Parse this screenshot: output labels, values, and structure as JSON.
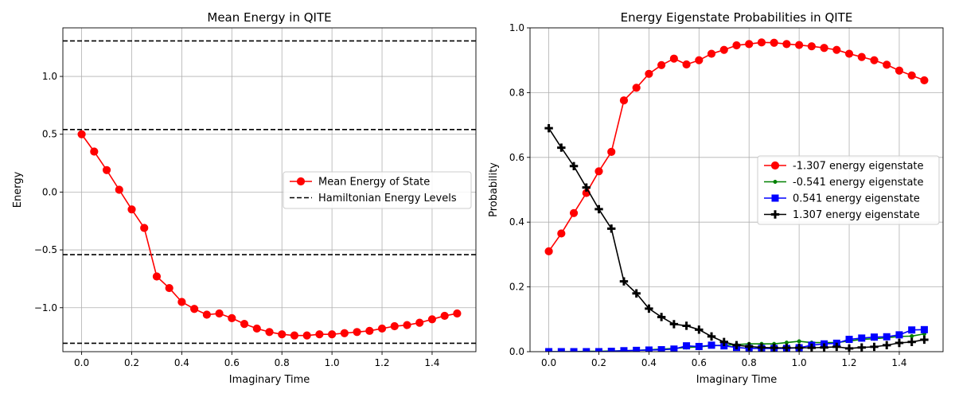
{
  "chart_data": [
    {
      "type": "line",
      "title": "Mean Energy in QITE",
      "xlabel": "Imaginary Time",
      "ylabel": "Energy",
      "xlim": [
        -0.075,
        1.575
      ],
      "ylim": [
        -1.38,
        1.42
      ],
      "xticks": [
        0.0,
        0.2,
        0.4,
        0.6,
        0.8,
        1.0,
        1.2,
        1.4
      ],
      "xtick_labels": [
        "0.0",
        "0.2",
        "0.4",
        "0.6",
        "0.8",
        "1.0",
        "1.2",
        "1.4"
      ],
      "yticks": [
        -1.0,
        -0.5,
        0.0,
        0.5,
        1.0
      ],
      "ytick_labels": [
        "−1.0",
        "−0.5",
        "0.0",
        "0.5",
        "1.0"
      ],
      "grid": true,
      "legend_position": "center-right",
      "series": [
        {
          "name": "Mean Energy of State",
          "color": "#ff0000",
          "marker": "circle",
          "x": [
            0.0,
            0.05,
            0.1,
            0.15,
            0.2,
            0.25,
            0.3,
            0.35,
            0.4,
            0.45,
            0.5,
            0.55,
            0.6,
            0.65,
            0.7,
            0.75,
            0.8,
            0.85,
            0.9,
            0.95,
            1.0,
            1.05,
            1.1,
            1.15,
            1.2,
            1.25,
            1.3,
            1.35,
            1.4,
            1.45,
            1.5
          ],
          "y": [
            0.5,
            0.35,
            0.19,
            0.02,
            -0.15,
            -0.31,
            -0.73,
            -0.83,
            -0.95,
            -1.01,
            -1.06,
            -1.05,
            -1.09,
            -1.14,
            -1.18,
            -1.21,
            -1.23,
            -1.24,
            -1.24,
            -1.23,
            -1.23,
            -1.22,
            -1.21,
            -1.2,
            -1.18,
            -1.16,
            -1.15,
            -1.13,
            -1.1,
            -1.07,
            -1.05
          ]
        }
      ],
      "hlines": {
        "name": "Hamiltonian Energy Levels",
        "color": "#000000",
        "style": "dashed",
        "values": [
          -1.307,
          -0.541,
          0.541,
          1.307
        ]
      }
    },
    {
      "type": "line",
      "title": "Energy Eigenstate Probabilities in QITE",
      "xlabel": "Imaginary Time",
      "ylabel": "Probability",
      "xlim": [
        -0.075,
        1.575
      ],
      "ylim": [
        0.0,
        1.0
      ],
      "xticks": [
        0.0,
        0.2,
        0.4,
        0.6,
        0.8,
        1.0,
        1.2,
        1.4
      ],
      "xtick_labels": [
        "0.0",
        "0.2",
        "0.4",
        "0.6",
        "0.8",
        "1.0",
        "1.2",
        "1.4"
      ],
      "yticks": [
        0.0,
        0.2,
        0.4,
        0.6,
        0.8,
        1.0
      ],
      "ytick_labels": [
        "0.0",
        "0.2",
        "0.4",
        "0.6",
        "0.8",
        "1.0"
      ],
      "grid": true,
      "legend_position": "center-right",
      "series": [
        {
          "name": "-1.307 energy eigenstate",
          "color": "#ff0000",
          "marker": "circle",
          "x": [
            0.0,
            0.05,
            0.1,
            0.15,
            0.2,
            0.25,
            0.3,
            0.35,
            0.4,
            0.45,
            0.5,
            0.55,
            0.6,
            0.65,
            0.7,
            0.75,
            0.8,
            0.85,
            0.9,
            0.95,
            1.0,
            1.05,
            1.1,
            1.15,
            1.2,
            1.25,
            1.3,
            1.35,
            1.4,
            1.45,
            1.5
          ],
          "y": [
            0.31,
            0.365,
            0.428,
            0.49,
            0.557,
            0.617,
            0.776,
            0.815,
            0.858,
            0.885,
            0.905,
            0.887,
            0.9,
            0.92,
            0.932,
            0.946,
            0.95,
            0.955,
            0.954,
            0.95,
            0.947,
            0.943,
            0.938,
            0.932,
            0.92,
            0.91,
            0.9,
            0.886,
            0.868,
            0.853,
            0.838
          ]
        },
        {
          "name": "-0.541 energy eigenstate",
          "color": "#008000",
          "marker": "small-dot",
          "x": [
            0.0,
            0.05,
            0.1,
            0.15,
            0.2,
            0.25,
            0.3,
            0.35,
            0.4,
            0.45,
            0.5,
            0.55,
            0.6,
            0.65,
            0.7,
            0.75,
            0.8,
            0.85,
            0.9,
            0.95,
            1.0,
            1.05,
            1.1,
            1.15,
            1.2,
            1.25,
            1.3,
            1.35,
            1.4,
            1.45,
            1.5
          ],
          "y": [
            0.0,
            0.0,
            0.0,
            0.001,
            0.001,
            0.002,
            0.003,
            0.004,
            0.006,
            0.008,
            0.01,
            0.013,
            0.015,
            0.018,
            0.02,
            0.022,
            0.024,
            0.024,
            0.024,
            0.028,
            0.032,
            0.028,
            0.028,
            0.028,
            0.033,
            0.038,
            0.04,
            0.043,
            0.047,
            0.048,
            0.055
          ]
        },
        {
          "name": "0.541 energy eigenstate",
          "color": "#0000ff",
          "marker": "square",
          "x": [
            0.0,
            0.05,
            0.1,
            0.15,
            0.2,
            0.25,
            0.3,
            0.35,
            0.4,
            0.45,
            0.5,
            0.55,
            0.6,
            0.65,
            0.7,
            0.75,
            0.8,
            0.85,
            0.9,
            0.95,
            1.0,
            1.05,
            1.1,
            1.15,
            1.2,
            1.25,
            1.3,
            1.35,
            1.4,
            1.45,
            1.5
          ],
          "y": [
            0.0,
            0.0,
            0.0,
            0.0,
            0.0,
            0.001,
            0.003,
            0.004,
            0.005,
            0.006,
            0.008,
            0.018,
            0.016,
            0.02,
            0.018,
            0.013,
            0.01,
            0.01,
            0.01,
            0.01,
            0.012,
            0.02,
            0.024,
            0.026,
            0.038,
            0.042,
            0.045,
            0.046,
            0.052,
            0.067,
            0.068
          ]
        },
        {
          "name": "1.307 energy eigenstate",
          "color": "#000000",
          "marker": "plus",
          "x": [
            0.0,
            0.05,
            0.1,
            0.15,
            0.2,
            0.25,
            0.3,
            0.35,
            0.4,
            0.45,
            0.5,
            0.55,
            0.6,
            0.65,
            0.7,
            0.75,
            0.8,
            0.85,
            0.9,
            0.95,
            1.0,
            1.05,
            1.1,
            1.15,
            1.2,
            1.25,
            1.3,
            1.35,
            1.4,
            1.45,
            1.5
          ],
          "y": [
            0.69,
            0.63,
            0.573,
            0.507,
            0.44,
            0.38,
            0.217,
            0.18,
            0.133,
            0.107,
            0.085,
            0.08,
            0.068,
            0.047,
            0.03,
            0.02,
            0.016,
            0.013,
            0.012,
            0.012,
            0.012,
            0.012,
            0.013,
            0.015,
            0.01,
            0.013,
            0.015,
            0.02,
            0.027,
            0.03,
            0.037
          ]
        }
      ]
    }
  ]
}
